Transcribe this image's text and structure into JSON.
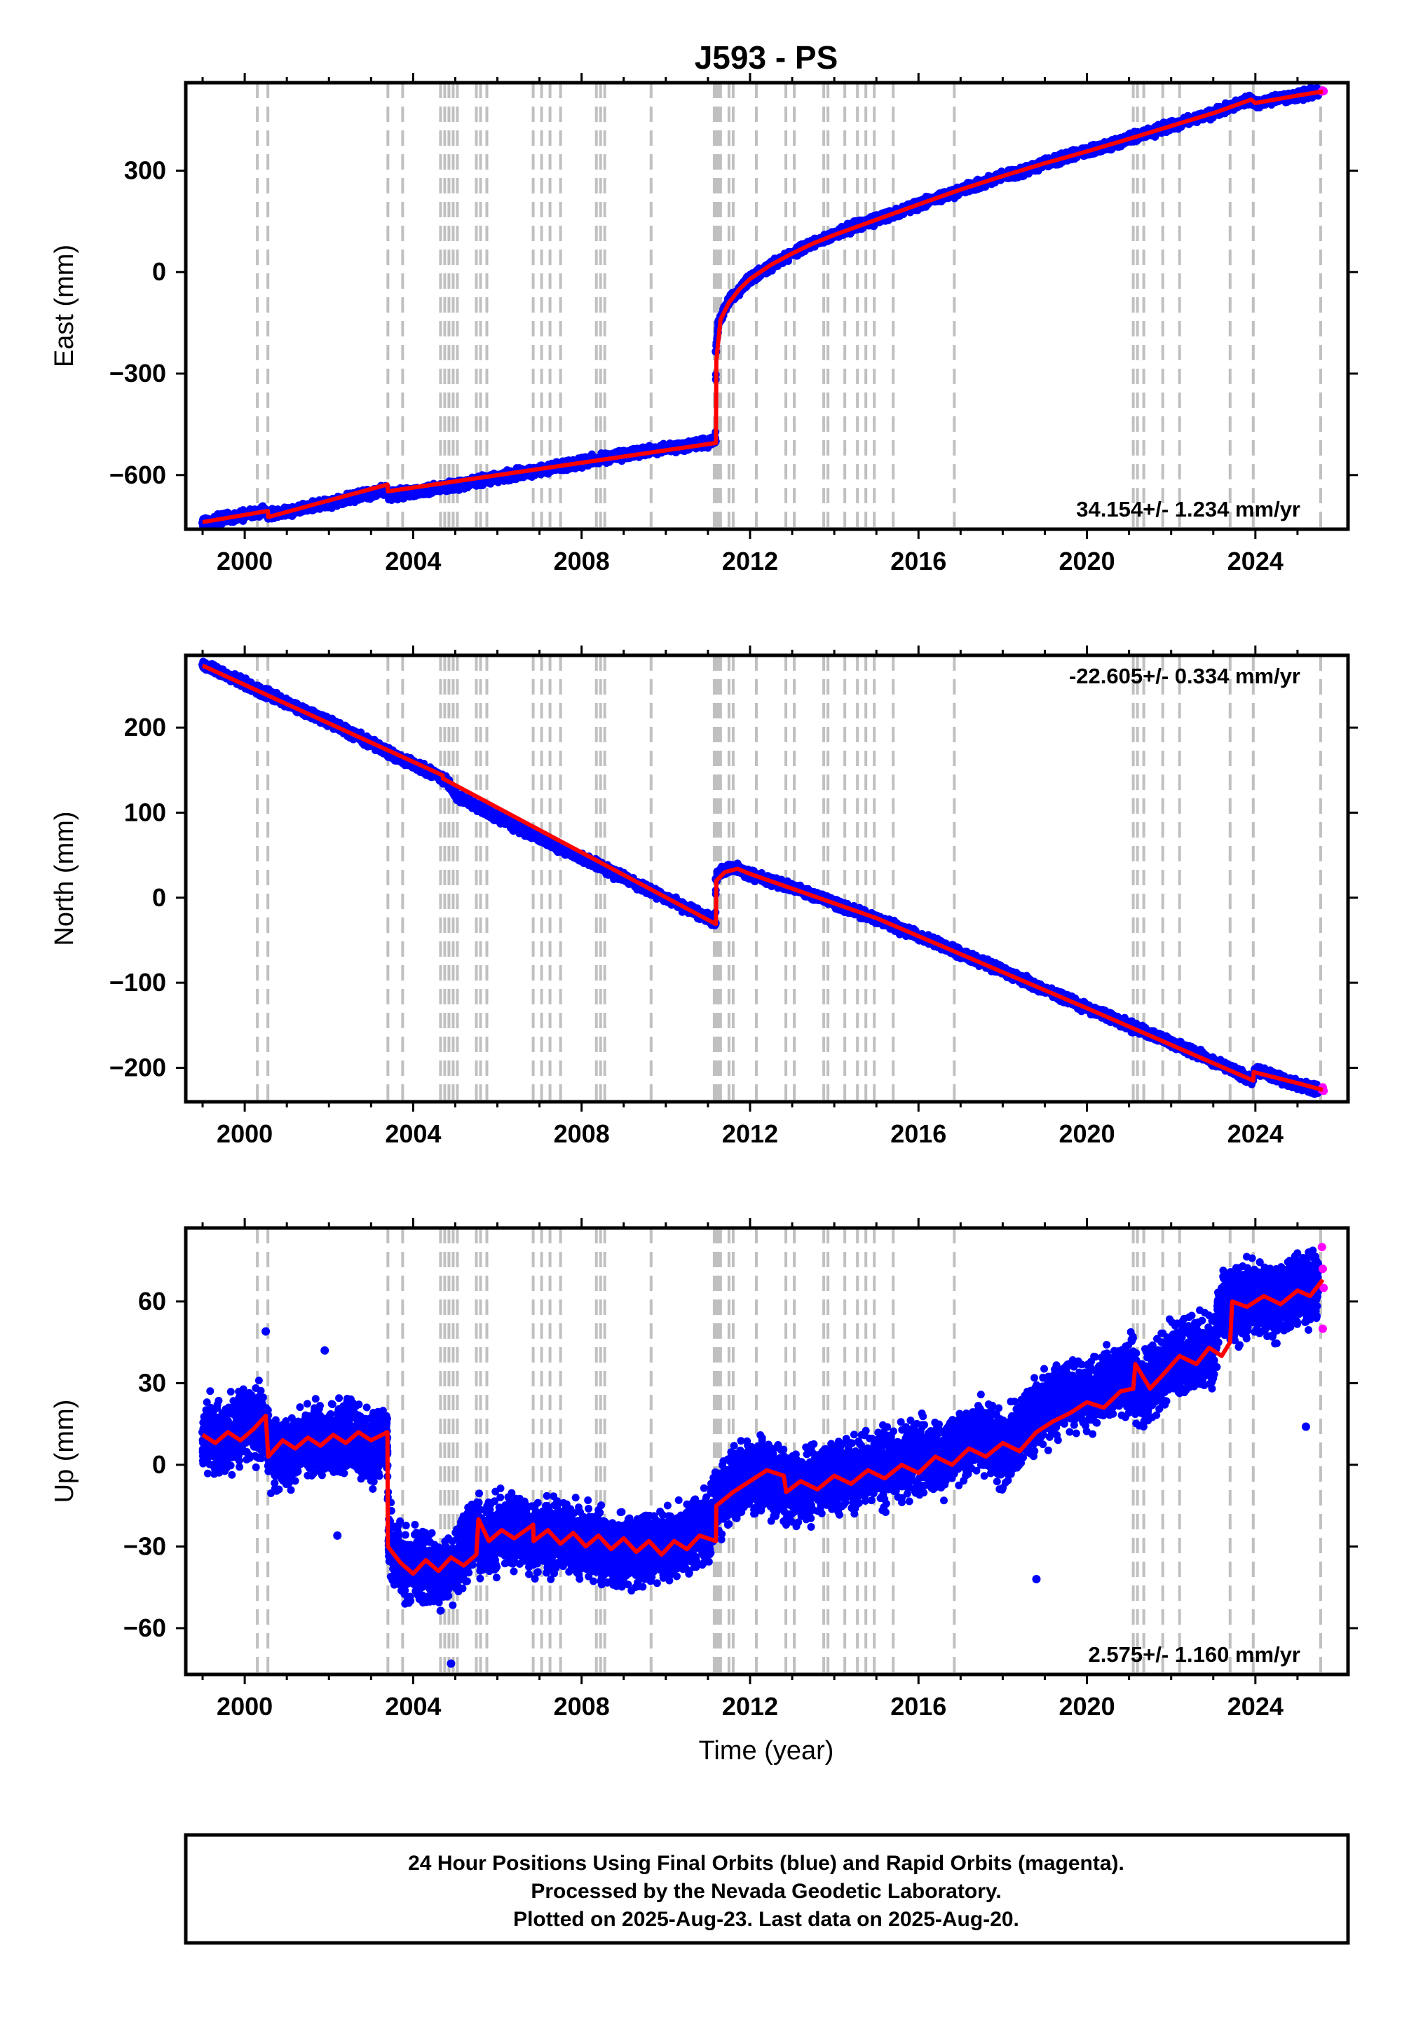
{
  "chart_data": {
    "type": "scatter",
    "title": "J593 - PS",
    "xlabel": "Time (year)",
    "x_range": [
      1998.6,
      2026.2
    ],
    "x_ticks": [
      2000,
      2004,
      2008,
      2012,
      2016,
      2020,
      2024
    ],
    "marker_colors": {
      "final": "#0000ff",
      "rapid": "#ff00ff",
      "model": "#ff0000",
      "steps": "#c0c0c0"
    },
    "step_epochs": [
      2000.3,
      2000.55,
      2003.4,
      2003.75,
      2004.65,
      2004.75,
      2004.85,
      2004.95,
      2005.05,
      2005.5,
      2005.6,
      2005.75,
      2006.85,
      2007.05,
      2007.25,
      2007.5,
      2008.35,
      2008.45,
      2008.55,
      2009.65,
      2011.15,
      2011.2,
      2011.25,
      2011.3,
      2011.5,
      2011.6,
      2012.15,
      2012.85,
      2013.05,
      2013.75,
      2013.85,
      2014.25,
      2014.55,
      2014.75,
      2014.95,
      2015.4,
      2016.85,
      2021.1,
      2021.2,
      2021.35,
      2021.8,
      2022.2,
      2023.4,
      2023.95,
      2025.55
    ],
    "panels": [
      {
        "id": "east",
        "ylabel": "East (mm)",
        "ylim": [
          -760,
          560
        ],
        "yticks": [
          300,
          0,
          -300,
          -600
        ],
        "ytick_labels": [
          "300",
          "0",
          "−300",
          "−600"
        ],
        "rate_label": "34.154+/- 1.234 mm/yr",
        "rate_position": "bottom-right",
        "series": [
          {
            "name": "Final Orbits",
            "kind": "points",
            "x": [
              1999.0,
              1999.5,
              2000.0,
              2000.5,
              2000.56,
              2001.0,
              2001.5,
              2002.0,
              2002.5,
              2003.0,
              2003.38,
              2003.42,
              2004.0,
              2004.5,
              2005.0,
              2005.5,
              2006.0,
              2006.5,
              2007.0,
              2007.5,
              2008.0,
              2008.5,
              2009.0,
              2009.5,
              2010.0,
              2010.5,
              2011.0,
              2011.18,
              2011.19,
              2011.25,
              2011.5,
              2012.0,
              2012.5,
              2013.0,
              2013.5,
              2014.0,
              2014.5,
              2015.0,
              2015.5,
              2016.0,
              2016.5,
              2017.0,
              2017.5,
              2018.0,
              2018.5,
              2019.0,
              2019.5,
              2020.0,
              2020.5,
              2021.0,
              2021.5,
              2022.0,
              2022.5,
              2023.0,
              2023.5,
              2023.9,
              2024.0,
              2024.5,
              2025.0,
              2025.5
            ],
            "y": [
              -741,
              -730,
              -718,
              -706,
              -720,
              -708,
              -694,
              -683,
              -669,
              -654,
              -643,
              -658,
              -652,
              -641,
              -631,
              -620,
              -608,
              -596,
              -585,
              -575,
              -562,
              -550,
              -540,
              -530,
              -522,
              -513,
              -502,
              -500,
              -235,
              -150,
              -85,
              -20,
              20,
              55,
              85,
              110,
              135,
              155,
              177,
              200,
              220,
              242,
              262,
              283,
              300,
              322,
              340,
              358,
              373,
              395,
              412,
              432,
              450,
              470,
              492,
              512,
              498,
              512,
              522,
              535
            ]
          },
          {
            "name": "Rapid Orbits",
            "kind": "points",
            "x": [
              2025.58,
              2025.6,
              2025.62
            ],
            "y": [
              534,
              537,
              535
            ]
          },
          {
            "name": "Model",
            "kind": "line",
            "x": [
              1999.0,
              2000.55,
              2000.56,
              2003.39,
              2003.4,
              2011.19,
              2011.2,
              2011.3,
              2011.5,
              2011.75,
              2012.0,
              2012.5,
              2013.0,
              2013.5,
              2014.0,
              2015.0,
              2016.0,
              2017.0,
              2018.0,
              2019.0,
              2020.0,
              2021.0,
              2022.0,
              2023.0,
              2023.9,
              2024.0,
              2025.0,
              2025.6
            ],
            "y": [
              -739,
              -706,
              -724,
              -628,
              -648,
              -505,
              -260,
              -140,
              -90,
              -50,
              -20,
              22,
              55,
              85,
              110,
              155,
              200,
              244,
              284,
              322,
              357,
              394,
              432,
              470,
              510,
              500,
              522,
              534
            ]
          }
        ]
      },
      {
        "id": "north",
        "ylabel": "North (mm)",
        "ylim": [
          -240,
          285
        ],
        "yticks": [
          200,
          100,
          0,
          -100,
          -200
        ],
        "ytick_labels": [
          "200",
          "100",
          "0",
          "−100",
          "−200"
        ],
        "rate_label": "-22.605+/- 0.334 mm/yr",
        "rate_position": "top-right",
        "series": [
          {
            "name": "Final Orbits",
            "kind": "points",
            "x": [
              1999.0,
              1999.5,
              2000.0,
              2000.5,
              2001.0,
              2001.5,
              2002.0,
              2002.5,
              2003.0,
              2003.5,
              2004.0,
              2004.5,
              2004.8,
              2005.0,
              2005.5,
              2006.0,
              2006.5,
              2007.0,
              2007.5,
              2008.0,
              2008.5,
              2009.0,
              2009.5,
              2010.0,
              2010.5,
              2011.0,
              2011.18,
              2011.19,
              2011.3,
              2011.6,
              2012.0,
              2012.5,
              2013.0,
              2013.5,
              2014.0,
              2014.5,
              2015.0,
              2015.5,
              2016.0,
              2016.5,
              2017.0,
              2017.5,
              2018.0,
              2018.5,
              2019.0,
              2019.5,
              2020.0,
              2020.5,
              2021.0,
              2021.5,
              2022.0,
              2022.5,
              2023.0,
              2023.5,
              2023.9,
              2024.0,
              2024.5,
              2025.0,
              2025.5
            ],
            "y": [
              274,
              263,
              252,
              240,
              229,
              218,
              207,
              194,
              183,
              168,
              157,
              145,
              138,
              121,
              108,
              94,
              82,
              70,
              58,
              47,
              35,
              24,
              11,
              -1,
              -12,
              -24,
              -30,
              22,
              32,
              35,
              28,
              20,
              12,
              3,
              -6,
              -16,
              -25,
              -35,
              -45,
              -55,
              -66,
              -76,
              -86,
              -97,
              -108,
              -118,
              -130,
              -140,
              -150,
              -160,
              -170,
              -181,
              -192,
              -203,
              -215,
              -203,
              -212,
              -220,
              -226
            ]
          },
          {
            "name": "Rapid Orbits",
            "kind": "points",
            "x": [
              2025.58,
              2025.6,
              2025.62
            ],
            "y": [
              -226,
              -223,
              -227
            ]
          },
          {
            "name": "Model",
            "kind": "line",
            "x": [
              1999.0,
              2004.7,
              2004.71,
              2011.19,
              2011.2,
              2011.4,
              2011.7,
              2012.0,
              2015.0,
              2020.0,
              2023.95,
              2023.96,
              2025.0,
              2025.6
            ],
            "y": [
              273,
              144,
              140,
              -31,
              20,
              30,
              34,
              28,
              -24,
              -130,
              -215,
              -205,
              -218,
              -226
            ]
          }
        ]
      },
      {
        "id": "up",
        "ylabel": "Up (mm)",
        "ylim": [
          -77,
          87
        ],
        "yticks": [
          60,
          30,
          0,
          -30,
          -60
        ],
        "ytick_labels": [
          "60",
          "30",
          "0",
          "−30",
          "−60"
        ],
        "rate_label": "2.575+/- 1.160 mm/yr",
        "rate_position": "bottom-right",
        "series": [
          {
            "name": "Final Orbits",
            "kind": "points",
            "x": [
              1999.0,
              1999.5,
              2000.0,
              2000.5,
              2000.6,
              2001.0,
              2001.5,
              2002.0,
              2002.5,
              2003.0,
              2003.38,
              2003.42,
              2003.8,
              2004.2,
              2004.6,
              2005.0,
              2005.5,
              2005.6,
              2006.0,
              2006.5,
              2006.9,
              2007.5,
              2008.0,
              2008.5,
              2009.0,
              2009.5,
              2010.0,
              2010.5,
              2011.0,
              2011.3,
              2011.6,
              2012.0,
              2012.5,
              2012.9,
              2013.5,
              2014.0,
              2014.5,
              2015.0,
              2015.5,
              2016.0,
              2016.5,
              2017.0,
              2017.5,
              2018.0,
              2018.5,
              2019.0,
              2019.5,
              2020.0,
              2020.5,
              2021.0,
              2021.3,
              2021.6,
              2022.0,
              2022.5,
              2023.0,
              2023.2,
              2023.5,
              2024.0,
              2024.5,
              2025.0,
              2025.5,
              2000.5,
              2001.9,
              2004.9,
              2002.2,
              2025.2,
              2018.8
            ],
            "y": [
              12,
              8,
              16,
              14,
              5,
              4,
              10,
              8,
              12,
              6,
              10,
              -28,
              -38,
              -36,
              -40,
              -38,
              -20,
              -28,
              -25,
              -24,
              -28,
              -26,
              -28,
              -30,
              -32,
              -30,
              -30,
              -28,
              -22,
              -12,
              -8,
              -3,
              -5,
              -10,
              -6,
              -4,
              -3,
              -1,
              0,
              4,
              2,
              6,
              12,
              5,
              14,
              20,
              26,
              24,
              30,
              33,
              28,
              30,
              38,
              40,
              42,
              60,
              58,
              62,
              60,
              64,
              66,
              49,
              42,
              -73,
              -26,
              14,
              -42
            ]
          },
          {
            "name": "Rapid Orbits",
            "kind": "points",
            "x": [
              2025.58,
              2025.6,
              2025.6,
              2025.62
            ],
            "y": [
              80,
              72,
              50,
              65
            ]
          },
          {
            "name": "Model",
            "kind": "line",
            "x": [
              1999.0,
              1999.3,
              1999.6,
              1999.9,
              2000.2,
              2000.5,
              2000.56,
              2000.9,
              2001.2,
              2001.5,
              2001.8,
              2002.1,
              2002.4,
              2002.7,
              2003.0,
              2003.39,
              2003.4,
              2003.7,
              2004.0,
              2004.3,
              2004.6,
              2004.9,
              2005.2,
              2005.5,
              2005.55,
              2005.8,
              2006.1,
              2006.4,
              2006.85,
              2006.86,
              2007.2,
              2007.5,
              2007.8,
              2008.1,
              2008.4,
              2008.7,
              2009.0,
              2009.3,
              2009.6,
              2009.9,
              2010.2,
              2010.5,
              2010.8,
              2011.19,
              2011.2,
              2011.6,
              2012.0,
              2012.4,
              2012.8,
              2012.86,
              2013.2,
              2013.6,
              2014.0,
              2014.4,
              2014.8,
              2015.2,
              2015.6,
              2016.0,
              2016.4,
              2016.8,
              2017.2,
              2017.6,
              2018.0,
              2018.4,
              2018.8,
              2019.2,
              2019.6,
              2020.0,
              2020.4,
              2020.8,
              2021.1,
              2021.15,
              2021.5,
              2021.8,
              2022.2,
              2022.6,
              2022.9,
              2023.2,
              2023.4,
              2023.45,
              2023.8,
              2024.2,
              2024.6,
              2025.0,
              2025.3,
              2025.6
            ],
            "y": [
              11,
              8,
              12,
              9,
              13,
              18,
              3,
              9,
              6,
              10,
              7,
              11,
              8,
              12,
              9,
              12,
              -30,
              -36,
              -40,
              -35,
              -39,
              -34,
              -37,
              -33,
              -20,
              -28,
              -24,
              -27,
              -22,
              -28,
              -24,
              -29,
              -25,
              -30,
              -26,
              -31,
              -27,
              -32,
              -28,
              -33,
              -28,
              -31,
              -26,
              -28,
              -15,
              -10,
              -6,
              -2,
              -4,
              -10,
              -6,
              -9,
              -4,
              -7,
              -2,
              -5,
              0,
              -3,
              3,
              0,
              6,
              3,
              8,
              5,
              12,
              16,
              19,
              23,
              21,
              27,
              28,
              37,
              28,
              33,
              40,
              37,
              43,
              40,
              45,
              60,
              58,
              62,
              59,
              64,
              62,
              68
            ]
          }
        ]
      }
    ]
  },
  "note": {
    "line1": "24 Hour Positions Using Final Orbits (blue) and Rapid Orbits (magenta).",
    "line2": "Processed by the Nevada Geodetic Laboratory.",
    "line3": "Plotted on 2025-Aug-23. Last data on 2025-Aug-20."
  }
}
